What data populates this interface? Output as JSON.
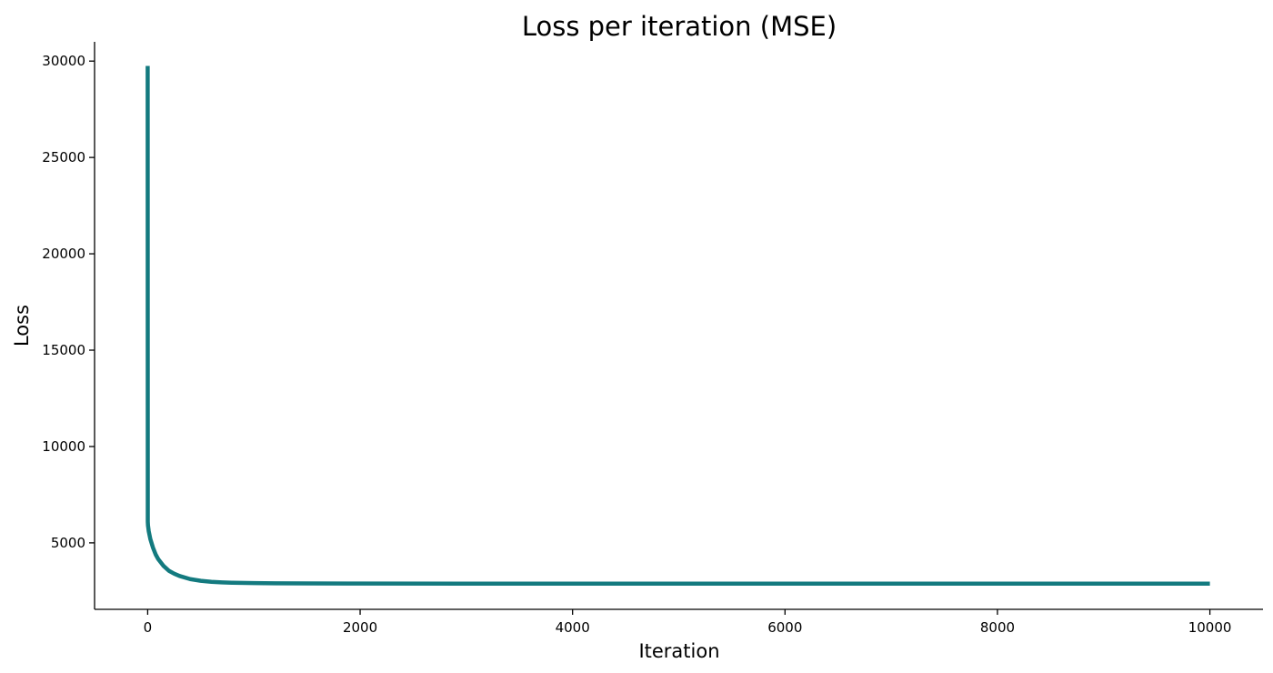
{
  "chart_data": {
    "type": "line",
    "title": "Loss per iteration (MSE)",
    "xlabel": "Iteration",
    "ylabel": "Loss",
    "xlim": [
      -500,
      10500
    ],
    "ylim": [
      1550,
      31000
    ],
    "xticks": [
      0,
      2000,
      4000,
      6000,
      8000,
      10000
    ],
    "yticks": [
      5000,
      10000,
      15000,
      20000,
      25000,
      30000
    ],
    "grid": false,
    "legend": "none",
    "spines": "left-bottom",
    "series": [
      {
        "color": "#137a7f",
        "x": [
          0,
          1,
          3,
          10,
          25,
          50,
          75,
          100,
          150,
          200,
          250,
          300,
          400,
          500,
          600,
          700,
          800,
          1000,
          1200,
          1500,
          2000,
          3000,
          4000,
          5000,
          6000,
          7000,
          8000,
          9000,
          10000
        ],
        "y": [
          29750,
          6100,
          5900,
          5600,
          5200,
          4750,
          4400,
          4150,
          3800,
          3550,
          3400,
          3280,
          3120,
          3030,
          2980,
          2950,
          2930,
          2910,
          2900,
          2895,
          2890,
          2885,
          2885,
          2885,
          2885,
          2885,
          2885,
          2885,
          2885
        ]
      }
    ]
  }
}
